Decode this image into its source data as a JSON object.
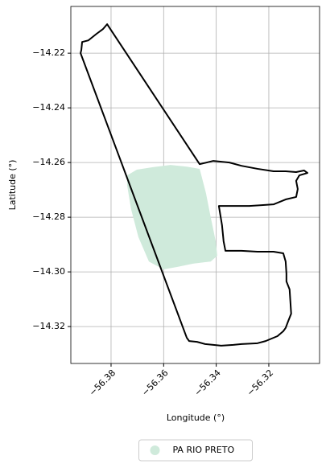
{
  "chart_data": {
    "type": "polygon",
    "xlabel": "Longitude (°)",
    "ylabel": "Latitude (°)",
    "xlim": [
      -56.3953,
      -56.3007
    ],
    "ylim": [
      -14.3335,
      -14.2029
    ],
    "xticks": [
      {
        "value": -56.38,
        "label": "−56.38"
      },
      {
        "value": -56.36,
        "label": "−56.36"
      },
      {
        "value": -56.34,
        "label": "−56.34"
      },
      {
        "value": -56.32,
        "label": "−56.32"
      }
    ],
    "yticks": [
      {
        "value": -14.22,
        "label": "−14.22"
      },
      {
        "value": -14.24,
        "label": "−14.24"
      },
      {
        "value": -14.26,
        "label": "−14.26"
      },
      {
        "value": -14.28,
        "label": "−14.28"
      },
      {
        "value": -14.3,
        "label": "−14.30"
      },
      {
        "value": -14.32,
        "label": "−14.32"
      }
    ],
    "grid": true,
    "legend": "lower center",
    "series": [
      {
        "name": "PA RIO PRETO",
        "color": "#cfeadb",
        "x": [
          -56.3739,
          -56.3702,
          -56.3641,
          -56.3574,
          -56.3512,
          -56.3463,
          -56.3439,
          -56.3421,
          -56.3402,
          -56.3396,
          -56.3421,
          -56.3488,
          -56.3549,
          -56.3601,
          -56.3656,
          -56.3696,
          -56.3724,
          -56.3739
        ],
        "y": [
          -14.2647,
          -14.2626,
          -14.2617,
          -14.2609,
          -14.2615,
          -14.2623,
          -14.2712,
          -14.28,
          -14.2888,
          -14.2941,
          -14.2962,
          -14.297,
          -14.2982,
          -14.2991,
          -14.2962,
          -14.2873,
          -14.277,
          -14.2682
        ]
      },
      {
        "color": "#000000",
        "x": [
          -56.3815,
          -56.3831,
          -56.3855,
          -56.3886,
          -56.391,
          -56.3913,
          -56.3916,
          -56.3512,
          -56.3503,
          -56.3473,
          -56.3442,
          -56.3411,
          -56.3381,
          -56.3335,
          -56.3304,
          -56.3243,
          -56.3212,
          -56.3167,
          -56.3145,
          -56.3136,
          -56.3127,
          -56.3115,
          -56.3118,
          -56.3121,
          -56.3133,
          -56.3133,
          -56.3136,
          -56.3145,
          -56.3182,
          -56.3243,
          -56.3304,
          -56.3365,
          -56.3372,
          -56.3378,
          -56.339,
          -56.3335,
          -56.3274,
          -56.3182,
          -56.3136,
          -56.3096,
          -56.309,
          -56.3096,
          -56.3084,
          -56.3053,
          -56.3066,
          -56.3096,
          -56.3136,
          -56.3182,
          -56.3243,
          -56.3304,
          -56.335,
          -56.3411,
          -56.3463,
          -56.3815
        ],
        "y": [
          -14.2094,
          -14.2112,
          -14.2129,
          -14.2153,
          -14.2159,
          -14.2188,
          -14.22,
          -14.3241,
          -14.3253,
          -14.3256,
          -14.3264,
          -14.3267,
          -14.327,
          -14.3267,
          -14.3264,
          -14.3261,
          -14.3253,
          -14.3235,
          -14.3217,
          -14.3205,
          -14.3182,
          -14.3153,
          -14.3108,
          -14.3064,
          -14.3035,
          -14.3006,
          -14.2962,
          -14.2932,
          -14.2926,
          -14.2926,
          -14.2923,
          -14.2923,
          -14.2888,
          -14.2829,
          -14.2759,
          -14.2759,
          -14.2759,
          -14.2753,
          -14.2735,
          -14.2726,
          -14.2697,
          -14.2667,
          -14.2647,
          -14.2638,
          -14.2629,
          -14.2635,
          -14.2632,
          -14.2632,
          -14.2623,
          -14.2612,
          -14.26,
          -14.2594,
          -14.2606,
          -14.2094
        ]
      }
    ]
  }
}
